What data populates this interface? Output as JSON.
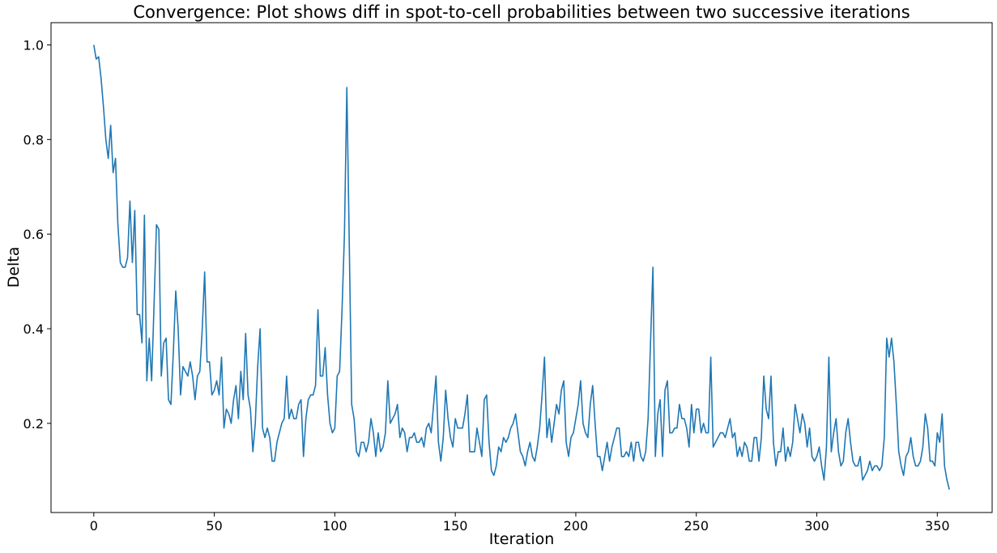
{
  "chart_data": {
    "type": "line",
    "title": "Convergence: Plot shows diff in spot-to-cell probabilities between two successive iterations",
    "x_label": "Iteration",
    "y_label": "Delta",
    "color": "#1f77b4",
    "grid": false,
    "xlim": [
      -17.75,
      372.75
    ],
    "ylim": [
      0.0115,
      1.047
    ],
    "xticks": [
      0,
      50,
      100,
      150,
      200,
      250,
      300,
      350
    ],
    "yticks": [
      0.2,
      0.4,
      0.6,
      0.8,
      {
        "value": 1,
        "label": "1.0"
      }
    ],
    "x": [
      0,
      1,
      2,
      3,
      4,
      5,
      6,
      7,
      8,
      9,
      10,
      11,
      12,
      13,
      14,
      15,
      16,
      17,
      18,
      19,
      20,
      21,
      22,
      23,
      24,
      25,
      26,
      27,
      28,
      29,
      30,
      31,
      32,
      33,
      34,
      35,
      36,
      37,
      38,
      39,
      40,
      41,
      42,
      43,
      44,
      45,
      46,
      47,
      48,
      49,
      50,
      51,
      52,
      53,
      54,
      55,
      56,
      57,
      58,
      59,
      60,
      61,
      62,
      63,
      64,
      65,
      66,
      67,
      68,
      69,
      70,
      71,
      72,
      73,
      74,
      75,
      76,
      77,
      78,
      79,
      80,
      81,
      82,
      83,
      84,
      85,
      86,
      87,
      88,
      89,
      90,
      91,
      92,
      93,
      94,
      95,
      96,
      97,
      98,
      99,
      100,
      101,
      102,
      103,
      104,
      105,
      106,
      107,
      108,
      109,
      110,
      111,
      112,
      113,
      114,
      115,
      116,
      117,
      118,
      119,
      120,
      121,
      122,
      123,
      124,
      125,
      126,
      127,
      128,
      129,
      130,
      131,
      132,
      133,
      134,
      135,
      136,
      137,
      138,
      139,
      140,
      141,
      142,
      143,
      144,
      145,
      146,
      147,
      148,
      149,
      150,
      151,
      152,
      153,
      154,
      155,
      156,
      157,
      158,
      159,
      160,
      161,
      162,
      163,
      164,
      165,
      166,
      167,
      168,
      169,
      170,
      171,
      172,
      173,
      174,
      175,
      176,
      177,
      178,
      179,
      180,
      181,
      182,
      183,
      184,
      185,
      186,
      187,
      188,
      189,
      190,
      191,
      192,
      193,
      194,
      195,
      196,
      197,
      198,
      199,
      200,
      201,
      202,
      203,
      204,
      205,
      206,
      207,
      208,
      209,
      210,
      211,
      212,
      213,
      214,
      215,
      216,
      217,
      218,
      219,
      220,
      221,
      222,
      223,
      224,
      225,
      226,
      227,
      228,
      229,
      230,
      231,
      232,
      233,
      234,
      235,
      236,
      237,
      238,
      239,
      240,
      241,
      242,
      243,
      244,
      245,
      246,
      247,
      248,
      249,
      250,
      251,
      252,
      253,
      254,
      255,
      256,
      257,
      258,
      259,
      260,
      261,
      262,
      263,
      264,
      265,
      266,
      267,
      268,
      269,
      270,
      271,
      272,
      273,
      274,
      275,
      276,
      277,
      278,
      279,
      280,
      281,
      282,
      283,
      284,
      285,
      286,
      287,
      288,
      289,
      290,
      291,
      292,
      293,
      294,
      295,
      296,
      297,
      298,
      299,
      300,
      301,
      302,
      303,
      304,
      305,
      306,
      307,
      308,
      309,
      310,
      311,
      312,
      313,
      314,
      315,
      316,
      317,
      318,
      319,
      320,
      321,
      322,
      323,
      324,
      325,
      326,
      327,
      328,
      329,
      330,
      331,
      332,
      333,
      334,
      335,
      336,
      337,
      338,
      339,
      340,
      341,
      342,
      343,
      344,
      345,
      346,
      347,
      348,
      349,
      350,
      351,
      352,
      353,
      354,
      355
    ],
    "values": [
      1.0,
      0.97,
      0.975,
      0.93,
      0.87,
      0.8,
      0.76,
      0.83,
      0.73,
      0.76,
      0.62,
      0.54,
      0.53,
      0.53,
      0.55,
      0.67,
      0.54,
      0.65,
      0.43,
      0.43,
      0.37,
      0.64,
      0.29,
      0.38,
      0.29,
      0.45,
      0.62,
      0.61,
      0.3,
      0.37,
      0.38,
      0.25,
      0.24,
      0.35,
      0.48,
      0.4,
      0.26,
      0.32,
      0.31,
      0.3,
      0.33,
      0.3,
      0.25,
      0.3,
      0.31,
      0.4,
      0.52,
      0.33,
      0.33,
      0.26,
      0.27,
      0.29,
      0.26,
      0.34,
      0.19,
      0.23,
      0.22,
      0.2,
      0.25,
      0.28,
      0.21,
      0.31,
      0.25,
      0.39,
      0.26,
      0.23,
      0.14,
      0.2,
      0.32,
      0.4,
      0.19,
      0.17,
      0.19,
      0.17,
      0.12,
      0.12,
      0.16,
      0.18,
      0.2,
      0.21,
      0.3,
      0.21,
      0.23,
      0.21,
      0.21,
      0.24,
      0.25,
      0.13,
      0.21,
      0.25,
      0.26,
      0.26,
      0.28,
      0.44,
      0.3,
      0.3,
      0.36,
      0.26,
      0.2,
      0.18,
      0.19,
      0.3,
      0.31,
      0.44,
      0.6,
      0.91,
      0.58,
      0.24,
      0.21,
      0.14,
      0.13,
      0.16,
      0.16,
      0.14,
      0.16,
      0.21,
      0.18,
      0.13,
      0.18,
      0.14,
      0.15,
      0.18,
      0.29,
      0.2,
      0.21,
      0.22,
      0.24,
      0.17,
      0.19,
      0.18,
      0.14,
      0.17,
      0.17,
      0.18,
      0.16,
      0.16,
      0.17,
      0.15,
      0.19,
      0.2,
      0.18,
      0.24,
      0.3,
      0.16,
      0.12,
      0.17,
      0.27,
      0.21,
      0.17,
      0.15,
      0.21,
      0.19,
      0.19,
      0.19,
      0.22,
      0.26,
      0.14,
      0.14,
      0.14,
      0.19,
      0.16,
      0.13,
      0.25,
      0.26,
      0.16,
      0.1,
      0.09,
      0.11,
      0.15,
      0.14,
      0.17,
      0.16,
      0.17,
      0.19,
      0.2,
      0.22,
      0.18,
      0.14,
      0.13,
      0.11,
      0.14,
      0.16,
      0.13,
      0.12,
      0.15,
      0.19,
      0.26,
      0.34,
      0.17,
      0.21,
      0.16,
      0.2,
      0.24,
      0.22,
      0.27,
      0.29,
      0.16,
      0.13,
      0.17,
      0.18,
      0.21,
      0.24,
      0.29,
      0.2,
      0.18,
      0.17,
      0.24,
      0.28,
      0.2,
      0.13,
      0.13,
      0.1,
      0.13,
      0.16,
      0.12,
      0.15,
      0.17,
      0.19,
      0.19,
      0.13,
      0.13,
      0.14,
      0.13,
      0.16,
      0.12,
      0.16,
      0.16,
      0.13,
      0.12,
      0.14,
      0.21,
      0.37,
      0.53,
      0.13,
      0.22,
      0.25,
      0.13,
      0.27,
      0.29,
      0.18,
      0.18,
      0.19,
      0.19,
      0.24,
      0.21,
      0.21,
      0.19,
      0.15,
      0.24,
      0.18,
      0.23,
      0.23,
      0.18,
      0.2,
      0.18,
      0.18,
      0.34,
      0.15,
      0.16,
      0.17,
      0.18,
      0.18,
      0.17,
      0.19,
      0.21,
      0.17,
      0.18,
      0.13,
      0.15,
      0.13,
      0.16,
      0.15,
      0.12,
      0.12,
      0.17,
      0.17,
      0.12,
      0.17,
      0.3,
      0.23,
      0.21,
      0.3,
      0.16,
      0.11,
      0.14,
      0.14,
      0.19,
      0.12,
      0.15,
      0.13,
      0.16,
      0.24,
      0.21,
      0.18,
      0.22,
      0.2,
      0.15,
      0.19,
      0.13,
      0.12,
      0.13,
      0.15,
      0.11,
      0.08,
      0.15,
      0.34,
      0.14,
      0.18,
      0.21,
      0.14,
      0.11,
      0.12,
      0.18,
      0.21,
      0.16,
      0.12,
      0.11,
      0.11,
      0.13,
      0.08,
      0.09,
      0.1,
      0.12,
      0.1,
      0.11,
      0.11,
      0.1,
      0.11,
      0.17,
      0.38,
      0.34,
      0.38,
      0.33,
      0.24,
      0.14,
      0.11,
      0.09,
      0.13,
      0.14,
      0.17,
      0.13,
      0.11,
      0.11,
      0.12,
      0.15,
      0.22,
      0.19,
      0.12,
      0.12,
      0.11,
      0.18,
      0.16,
      0.22,
      0.11,
      0.08,
      0.06
    ]
  }
}
